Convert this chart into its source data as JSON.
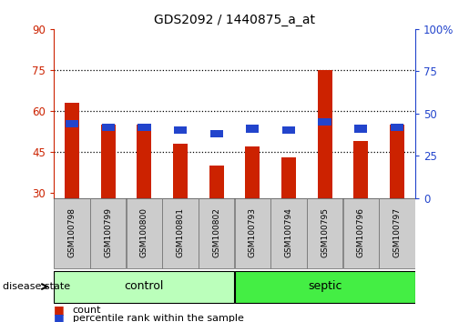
{
  "title": "GDS2092 / 1440875_a_at",
  "samples": [
    "GSM100798",
    "GSM100799",
    "GSM100800",
    "GSM100801",
    "GSM100802",
    "GSM100793",
    "GSM100794",
    "GSM100795",
    "GSM100796",
    "GSM100797"
  ],
  "count_values": [
    63,
    55,
    55,
    48,
    40,
    47,
    43,
    75,
    49,
    55
  ],
  "percentile_values": [
    44,
    42,
    42,
    40,
    38,
    41,
    40,
    45,
    41,
    42
  ],
  "bar_bottom": 28,
  "ylim_left": [
    28,
    90
  ],
  "ylim_right": [
    0,
    100
  ],
  "yticks_left": [
    30,
    45,
    60,
    75,
    90
  ],
  "yticks_right": [
    0,
    25,
    50,
    75,
    100
  ],
  "ytick_labels_right": [
    "0",
    "25",
    "50",
    "75",
    "100%"
  ],
  "bar_color": "#cc2200",
  "percentile_color": "#2244cc",
  "control_color": "#bbffbb",
  "septic_color": "#44ee44",
  "tick_color_left": "#cc2200",
  "tick_color_right": "#2244cc",
  "background_color": "#ffffff",
  "sample_box_color": "#cccccc",
  "legend_count_label": "count",
  "legend_pct_label": "percentile rank within the sample",
  "group_label_text": "disease state",
  "control_label": "control",
  "septic_label": "septic",
  "bar_width": 0.4,
  "n_control": 5,
  "n_septic": 5
}
